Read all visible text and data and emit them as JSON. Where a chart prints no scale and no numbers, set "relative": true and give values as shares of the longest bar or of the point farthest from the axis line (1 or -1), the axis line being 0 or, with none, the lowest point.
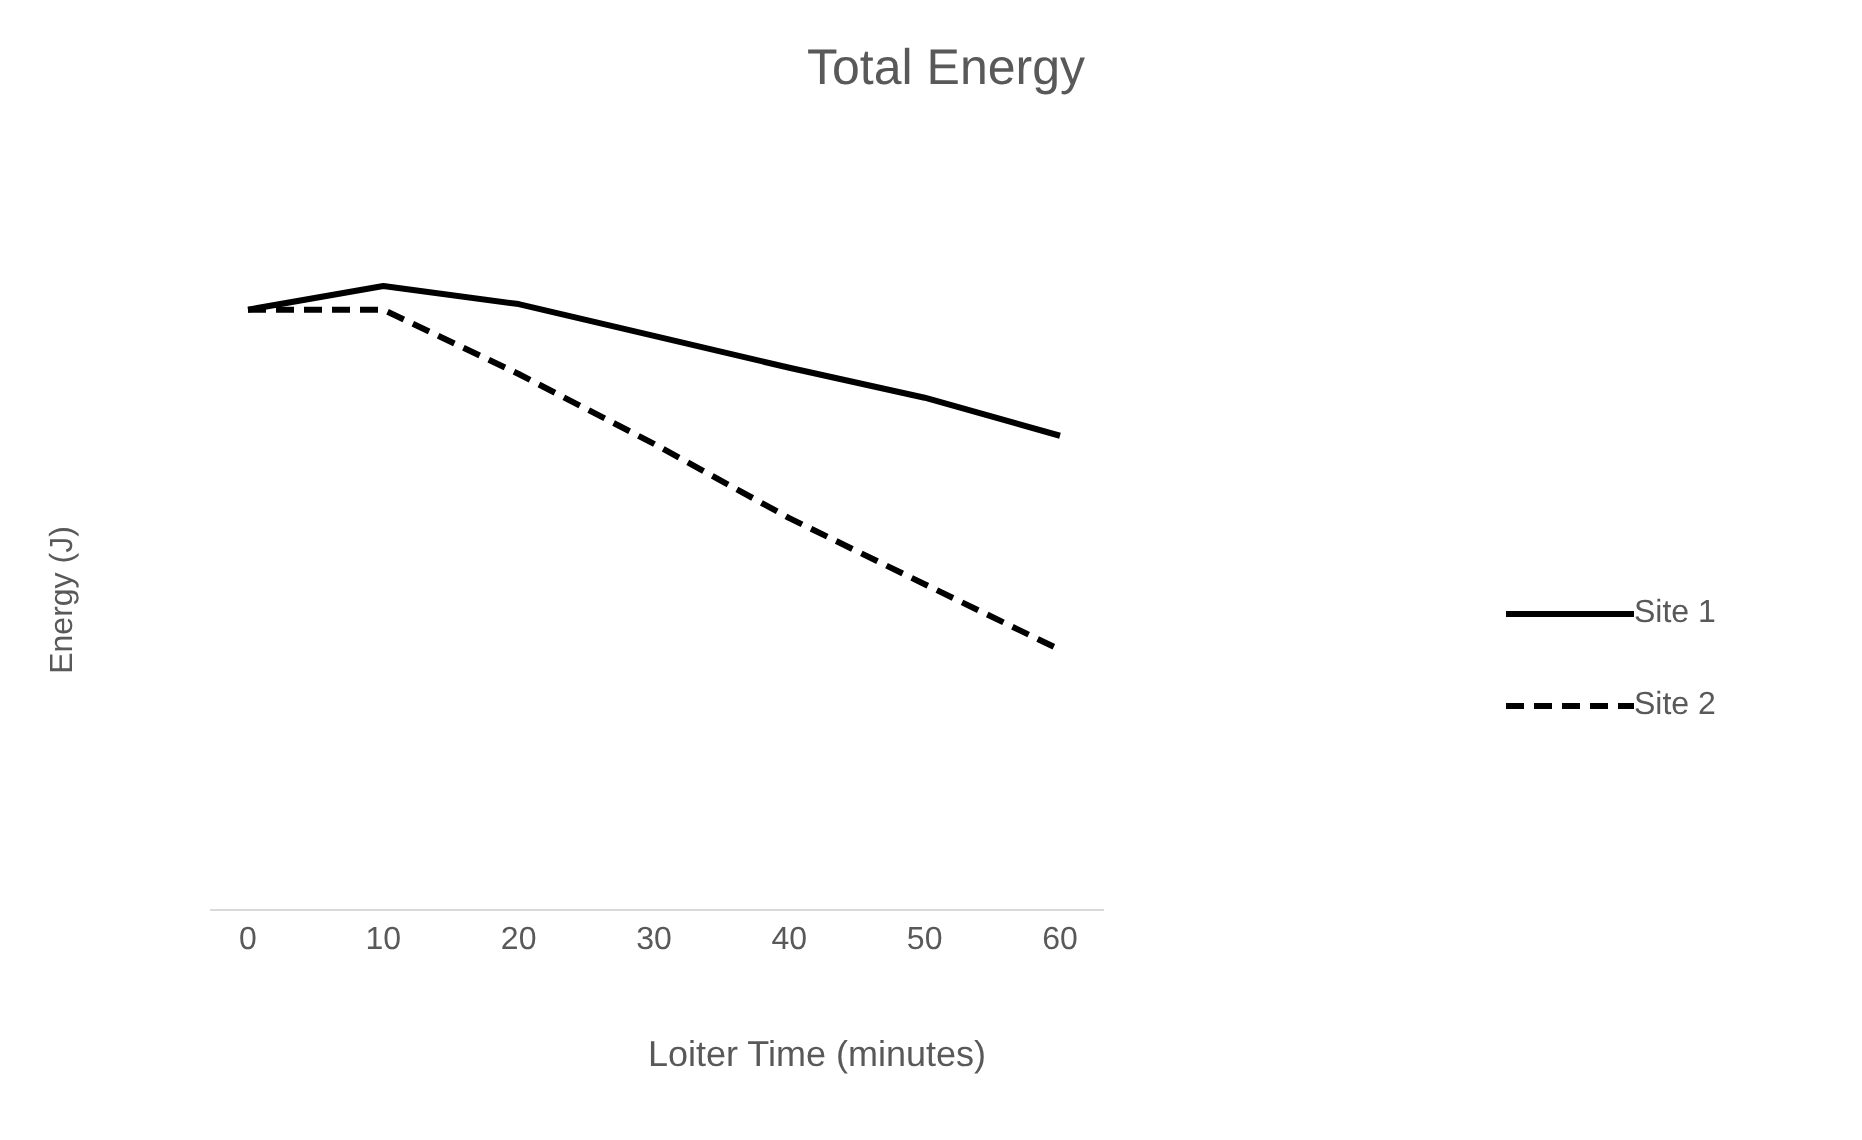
{
  "chart_data": {
    "type": "line",
    "title": "Total Energy",
    "xlabel": "Loiter Time (minutes)",
    "ylabel": "Energy (J)",
    "relative": true,
    "categories": [
      "0",
      "10",
      "20",
      "30",
      "40",
      "50",
      "60"
    ],
    "series": [
      {
        "name": "Site 1",
        "color": "#000000",
        "line_style": "solid",
        "values": [
          0.962,
          1,
          0.971,
          0.92,
          0.869,
          0.821,
          0.76
        ]
      },
      {
        "name": "Site 2",
        "color": "#000000",
        "line_style": "dashed",
        "values": [
          0.962,
          0.962,
          0.859,
          0.747,
          0.628,
          0.522,
          0.417
        ]
      }
    ],
    "legend": "right",
    "grid": false,
    "marker": "none"
  }
}
